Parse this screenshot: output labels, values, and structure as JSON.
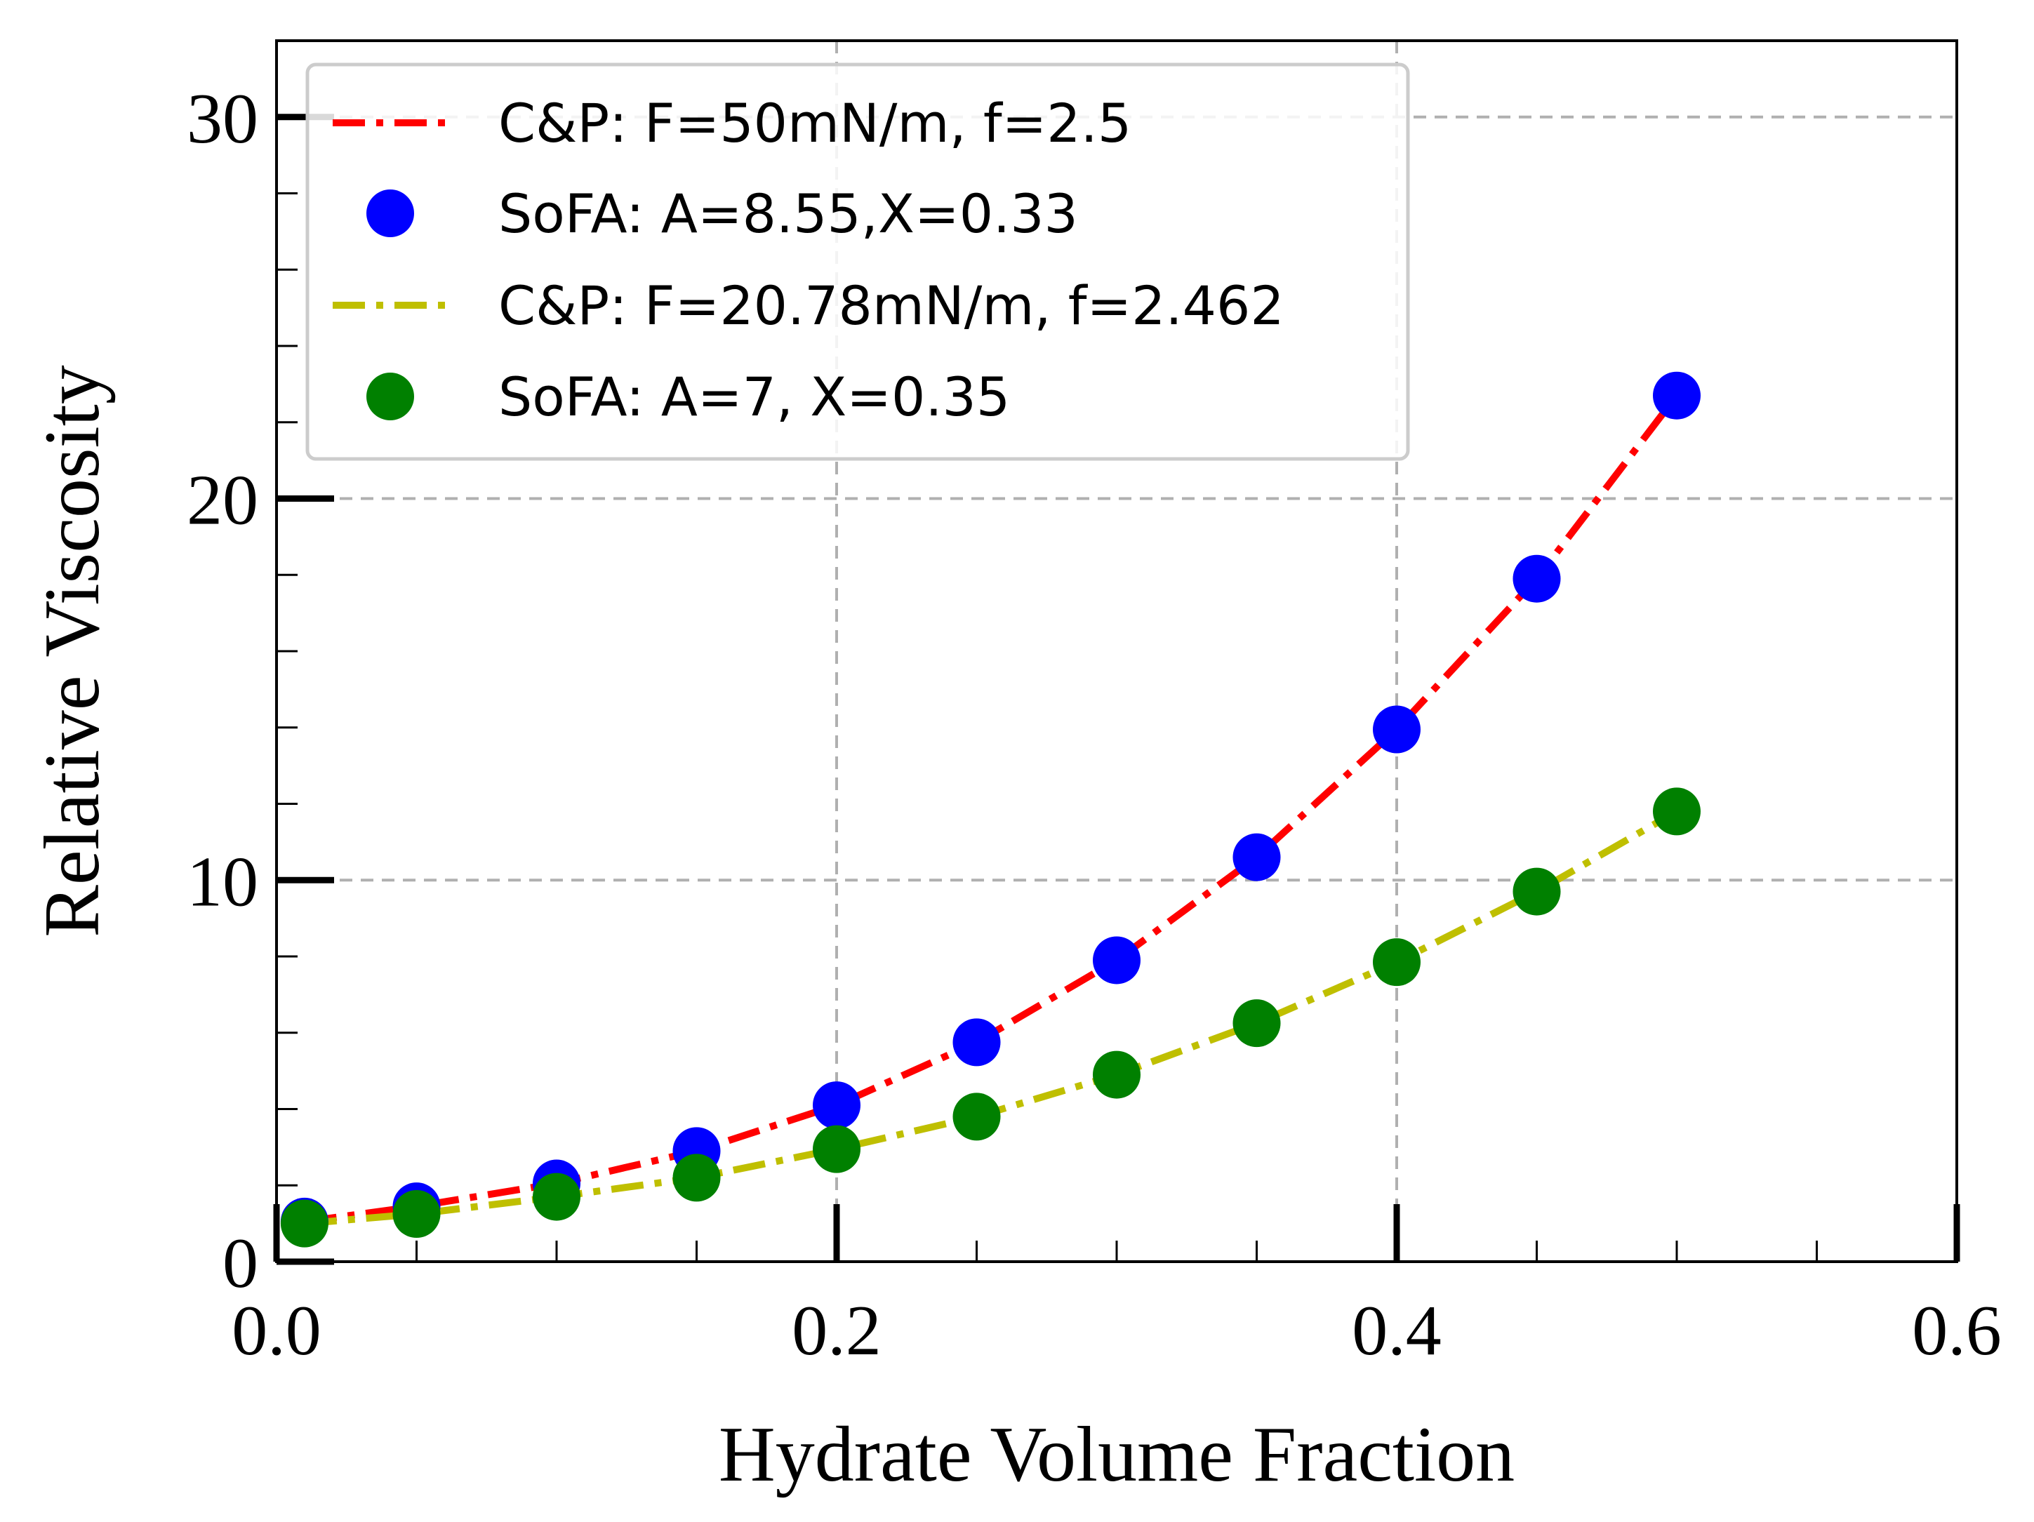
{
  "chart_data": {
    "type": "line",
    "title": "",
    "xlabel": "Hydrate Volume Fraction",
    "ylabel": "Relative Viscosity",
    "xlim": [
      0.0,
      0.6
    ],
    "ylim": [
      0,
      32
    ],
    "x_ticks": [
      0.0,
      0.2,
      0.4,
      0.6
    ],
    "x_tick_labels": [
      "0.0",
      "0.2",
      "0.4",
      "0.6"
    ],
    "y_ticks": [
      0,
      10,
      20,
      30
    ],
    "y_tick_labels": [
      "0",
      "10",
      "20",
      "30"
    ],
    "grid": true,
    "legend_position": "top-left",
    "series": [
      {
        "name": "C&P: F=50mN/m, f=2.5",
        "style": "dashdot-line",
        "color": "#ff0000",
        "x": [
          0.01,
          0.05,
          0.1,
          0.15,
          0.2,
          0.25,
          0.3,
          0.35,
          0.4,
          0.45,
          0.5
        ],
        "y": [
          1.05,
          1.45,
          2.05,
          2.9,
          4.1,
          5.75,
          7.9,
          10.6,
          13.95,
          17.9,
          22.7
        ]
      },
      {
        "name": "SoFA: A=8.55,X=0.33",
        "style": "markers",
        "color": "#0000ff",
        "x": [
          0.01,
          0.05,
          0.1,
          0.15,
          0.2,
          0.25,
          0.3,
          0.35,
          0.4,
          0.45,
          0.5
        ],
        "y": [
          1.05,
          1.45,
          2.05,
          2.9,
          4.1,
          5.75,
          7.9,
          10.6,
          13.95,
          17.9,
          22.7
        ]
      },
      {
        "name": "C&P: F=20.78mN/m, f=2.462",
        "style": "dashdot-line",
        "color": "#bfbf00",
        "x": [
          0.01,
          0.05,
          0.1,
          0.15,
          0.2,
          0.25,
          0.3,
          0.35,
          0.4,
          0.45,
          0.5
        ],
        "y": [
          1.0,
          1.25,
          1.7,
          2.2,
          2.95,
          3.8,
          4.9,
          6.25,
          7.85,
          9.7,
          11.8
        ]
      },
      {
        "name": "SoFA: A=7, X=0.35",
        "style": "markers",
        "color": "#008000",
        "x": [
          0.01,
          0.05,
          0.1,
          0.15,
          0.2,
          0.25,
          0.3,
          0.35,
          0.4,
          0.45,
          0.5
        ],
        "y": [
          1.0,
          1.25,
          1.7,
          2.2,
          2.95,
          3.8,
          4.9,
          6.25,
          7.85,
          9.7,
          11.8
        ]
      }
    ]
  }
}
